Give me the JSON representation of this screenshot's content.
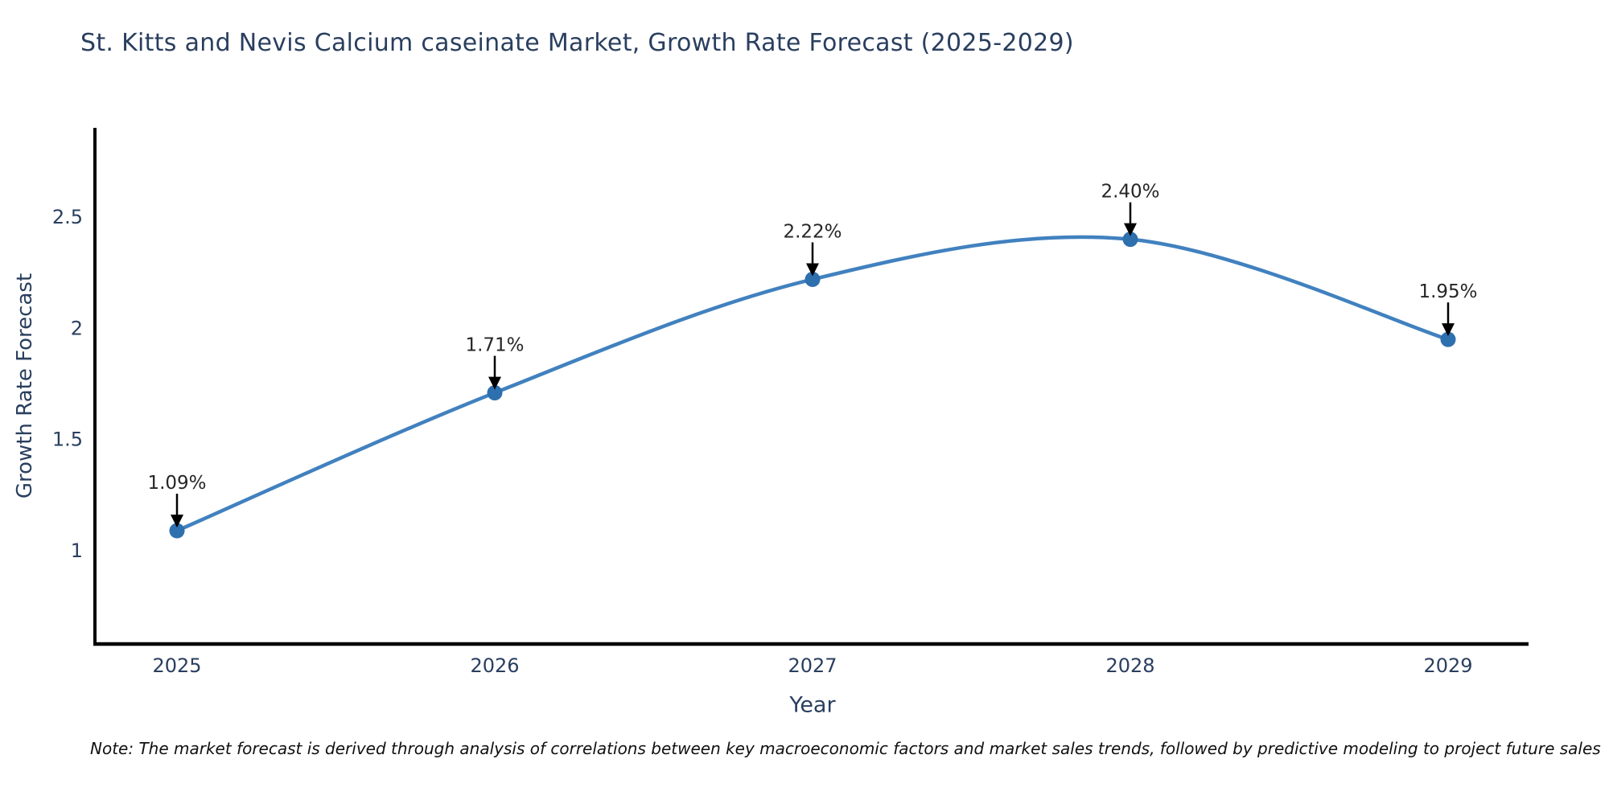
{
  "chart": {
    "title": "St. Kitts and Nevis Calcium caseinate Market, Growth Rate Forecast (2025-2029)",
    "ylabel": "Growth Rate Forecast",
    "xlabel": "Year",
    "note": "Note: The market forecast is derived through analysis of correlations between key macroeconomic factors and market sales trends, followed by predictive modeling to project future sales"
  },
  "chart_data": {
    "type": "line",
    "title": "St. Kitts and Nevis Calcium caseinate Market, Growth Rate Forecast (2025-2029)",
    "categories": [
      "2025",
      "2026",
      "2027",
      "2028",
      "2029"
    ],
    "values": [
      1.09,
      1.71,
      2.22,
      2.4,
      1.95
    ],
    "point_labels": [
      "1.09%",
      "1.71%",
      "2.22%",
      "2.40%",
      "1.95%"
    ],
    "xlabel": "Year",
    "ylabel": "Growth Rate Forecast",
    "yticks": [
      1,
      1.5,
      2,
      2.5
    ],
    "ytick_labels": [
      "1",
      "1.5",
      "2",
      "2.5"
    ],
    "ylim": [
      0.58,
      2.9
    ],
    "grid": false,
    "legend": false,
    "line_shape": "spline",
    "colors": {
      "line": "#4181bf",
      "marker": "#2e6fae",
      "axis_text": "#2a3f5f",
      "annotation_text": "#262626",
      "arrow": "#000000",
      "spine": "#000000"
    }
  }
}
